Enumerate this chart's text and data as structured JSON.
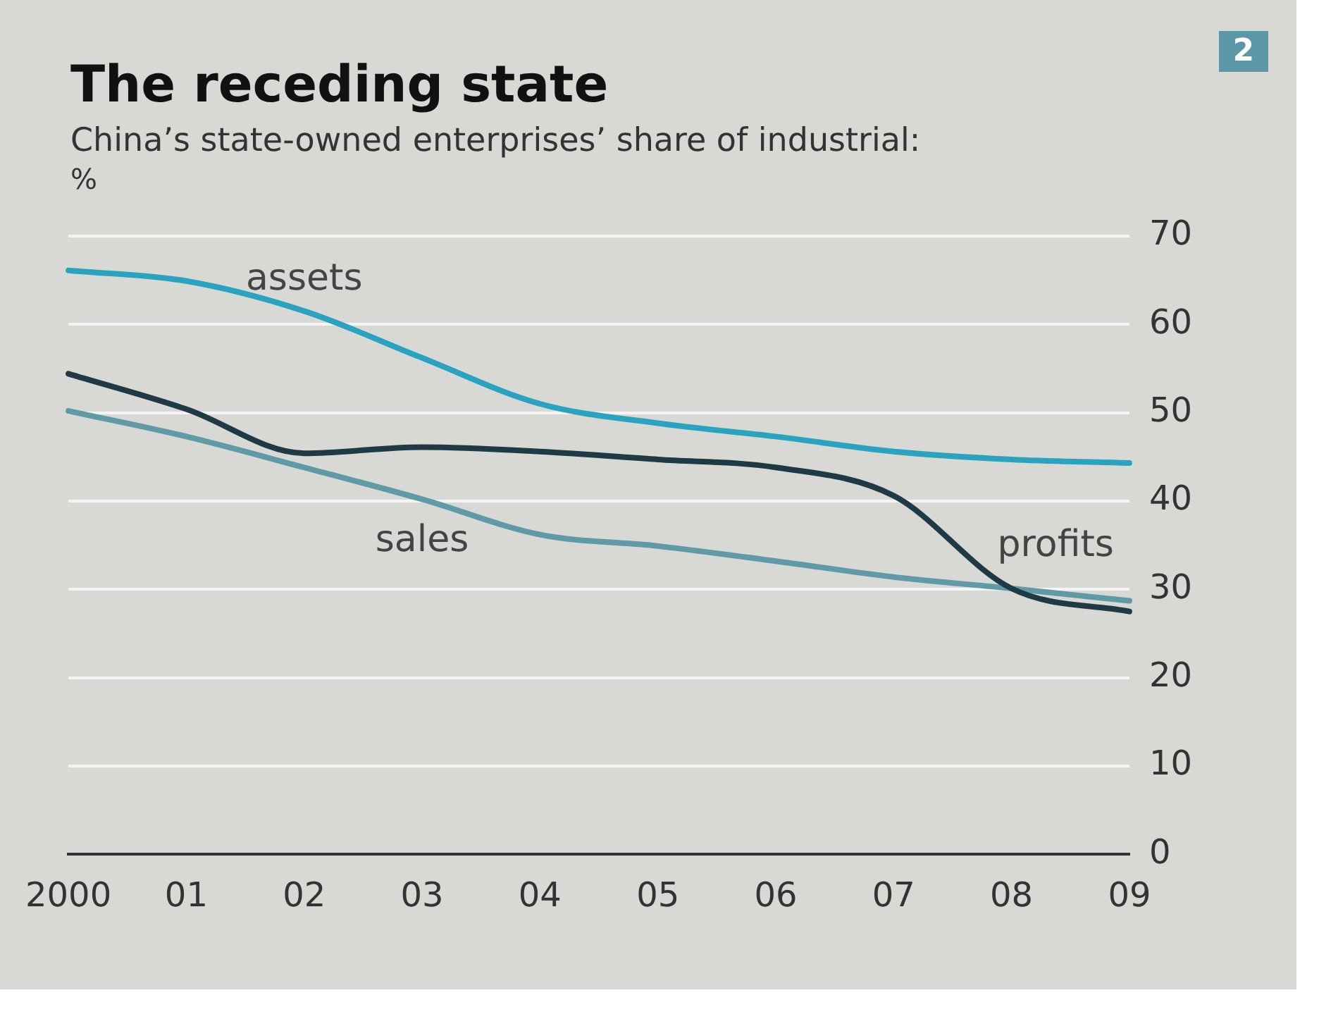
{
  "chart_data": {
    "type": "line",
    "title": "The receding state",
    "subtitle": "China’s state-owned enterprises’ share of industrial:",
    "ylabel": "%",
    "annotations": [
      "2"
    ],
    "categories": [
      "2000",
      "01",
      "02",
      "03",
      "04",
      "05",
      "06",
      "07",
      "08",
      "09"
    ],
    "series": [
      {
        "name": "assets",
        "color": "#2aa3c0",
        "values": [
          66.1,
          64.9,
          61.5,
          56.2,
          51,
          48.8,
          47.3,
          45.6,
          44.7,
          44.3
        ]
      },
      {
        "name": "profits",
        "color": "#1f3a44",
        "values": [
          54.4,
          50.4,
          45.4,
          46.1,
          45.6,
          44.7,
          43.8,
          40.6,
          30.1,
          27.5
        ]
      },
      {
        "name": "sales",
        "color": "#5f9aa6",
        "values": [
          50.2,
          47.3,
          43.8,
          40.2,
          36.2,
          34.9,
          33.2,
          31.4,
          30.1,
          28.7
        ]
      }
    ],
    "ylim": [
      0,
      70
    ],
    "yticks": [
      0,
      10,
      20,
      30,
      40,
      50,
      60,
      70
    ],
    "grid": "y",
    "legend": false,
    "marker": "none",
    "line_style": "solid"
  }
}
